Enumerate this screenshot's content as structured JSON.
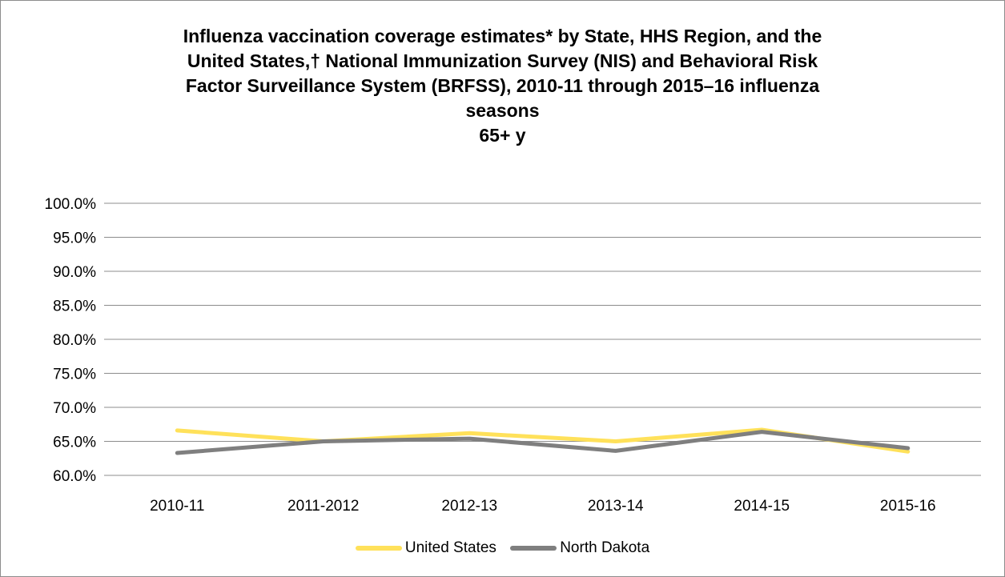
{
  "chart_data": {
    "type": "line",
    "title_lines": [
      "Influenza vaccination coverage estimates* by State, HHS Region, and the",
      "United States,† National Immunization Survey (NIS) and Behavioral Risk",
      "Factor Surveillance System (BRFSS), 2010-11 through 2015–16 influenza",
      "seasons",
      "65+ y"
    ],
    "categories": [
      "2010-11",
      "2011-2012",
      "2012-13",
      "2013-14",
      "2014-15",
      "2015-16"
    ],
    "y_ticks": [
      "100.0%",
      "95.0%",
      "90.0%",
      "85.0%",
      "80.0%",
      "75.0%",
      "70.0%",
      "65.0%",
      "60.0%"
    ],
    "ylim": [
      60,
      100
    ],
    "grid": true,
    "legend_position": "bottom",
    "series": [
      {
        "name": "United States",
        "color": "#FFE15A",
        "values": [
          66.6,
          65.0,
          66.2,
          65.0,
          66.7,
          63.5
        ]
      },
      {
        "name": "North Dakota",
        "color": "#7F7F7F",
        "values": [
          63.3,
          65.0,
          65.4,
          63.6,
          66.4,
          64.0
        ]
      }
    ]
  }
}
